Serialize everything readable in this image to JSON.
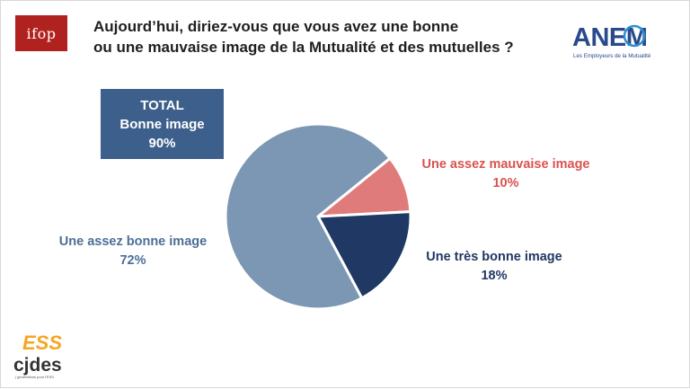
{
  "logos": {
    "ifop": "ifop",
    "anem": "ANEM",
    "anem_tagline": "Les Employeurs de la Mutualité",
    "ess": "ESS",
    "cjdes": "cjdes",
    "cjdes_tagline": "| générations pour l'ESS"
  },
  "colors": {
    "assez_mauvaise": "#e07b7b",
    "tres_bonne": "#1f3864",
    "assez_bonne": "#7c97b3",
    "total_box": "#3d5f8c"
  },
  "chart_data": {
    "type": "pie",
    "title_line1": "Aujourd’hui, diriez-vous que vous avez une bonne",
    "title_line2": "ou une mauvaise image de la Mutualité et des mutuelles ?",
    "total": {
      "label": "TOTAL",
      "sublabel": "Bonne image",
      "value": "90%"
    },
    "slices": [
      {
        "name": "Une assez mauvaise image",
        "value": 10,
        "color": "#e07b7b"
      },
      {
        "name": "Une très bonne image",
        "value": 18,
        "color": "#1f3864"
      },
      {
        "name": "Une assez bonne image",
        "value": 72,
        "color": "#7c97b3"
      }
    ],
    "labels": [
      {
        "name": "Une assez mauvaise image",
        "value": "10%"
      },
      {
        "name": "Une très bonne image",
        "value": "18%"
      },
      {
        "name": "Une assez bonne image",
        "value": "72%"
      }
    ]
  }
}
